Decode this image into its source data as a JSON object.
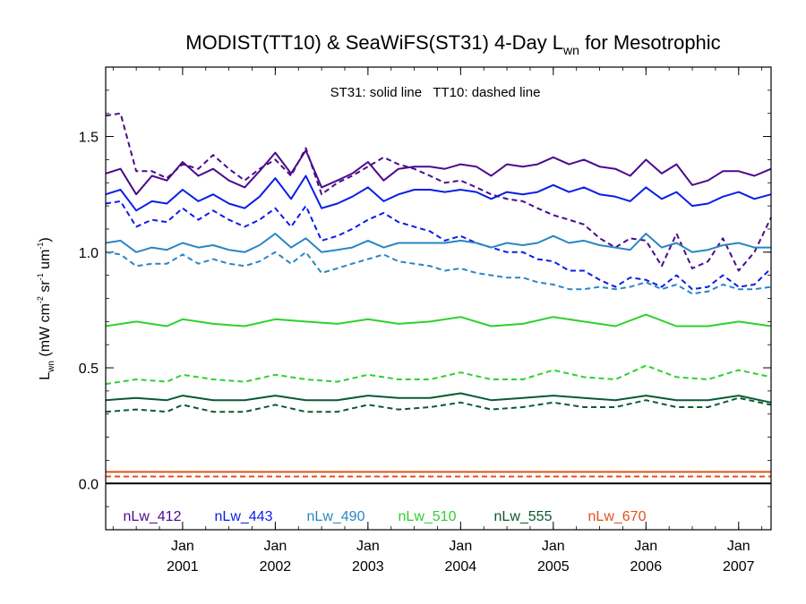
{
  "chart_data": {
    "type": "line",
    "title": {
      "main": "MODIST(TT10) & SeaWiFS(ST31) 4-Day L",
      "sub": "wn",
      "rest": " for Mesotrophic"
    },
    "annotation": "ST31: solid line   TT10: dashed line",
    "ylabel": {
      "base": "L",
      "base_sub": "wn",
      "paren_open": " (mW cm",
      "exp1": "-2",
      "sr": " sr",
      "exp2": "-1",
      "um": " um",
      "exp3": "-1",
      "paren_close": ")"
    },
    "xlim": [
      2000.17,
      2007.35
    ],
    "ylim": [
      -0.2,
      1.8
    ],
    "yticks": [
      {
        "value": 0.0,
        "label": "0.0"
      },
      {
        "value": 0.5,
        "label": "0.5"
      },
      {
        "value": 1.0,
        "label": "1.0"
      },
      {
        "value": 1.5,
        "label": "1.5"
      }
    ],
    "xticks": [
      {
        "value": 2001.0,
        "month": "Jan",
        "year": "2001"
      },
      {
        "value": 2002.0,
        "month": "Jan",
        "year": "2002"
      },
      {
        "value": 2003.0,
        "month": "Jan",
        "year": "2003"
      },
      {
        "value": 2004.0,
        "month": "Jan",
        "year": "2004"
      },
      {
        "value": 2005.0,
        "month": "Jan",
        "year": "2005"
      },
      {
        "value": 2006.0,
        "month": "Jan",
        "year": "2006"
      },
      {
        "value": 2007.0,
        "month": "Jan",
        "year": "2007"
      }
    ],
    "zero_line": 0.0,
    "legend": [
      {
        "label": "nLw_412",
        "color": "#4b0a8c"
      },
      {
        "label": "nLw_443",
        "color": "#0a1ee6"
      },
      {
        "label": "nLw_490",
        "color": "#2a86c4"
      },
      {
        "label": "nLw_510",
        "color": "#2ed12e"
      },
      {
        "label": "nLw_555",
        "color": "#0a5a32"
      },
      {
        "label": "nLw_670",
        "color": "#e0501e"
      }
    ],
    "series": [
      {
        "name": "nLw_412",
        "sensor": "ST31",
        "style": "solid",
        "color": "#4b0a8c",
        "x": [
          2000.17,
          2000.33,
          2000.5,
          2000.67,
          2000.83,
          2001.0,
          2001.17,
          2001.33,
          2001.5,
          2001.67,
          2001.83,
          2002.0,
          2002.17,
          2002.33,
          2002.5,
          2002.67,
          2002.83,
          2003.0,
          2003.17,
          2003.33,
          2003.5,
          2003.67,
          2003.83,
          2004.0,
          2004.17,
          2004.33,
          2004.5,
          2004.67,
          2004.83,
          2005.0,
          2005.17,
          2005.33,
          2005.5,
          2005.67,
          2005.83,
          2006.0,
          2006.17,
          2006.33,
          2006.5,
          2006.67,
          2006.83,
          2007.0,
          2007.17,
          2007.35
        ],
        "y": [
          1.34,
          1.36,
          1.25,
          1.33,
          1.31,
          1.39,
          1.33,
          1.36,
          1.31,
          1.28,
          1.35,
          1.43,
          1.34,
          1.44,
          1.28,
          1.31,
          1.34,
          1.39,
          1.31,
          1.36,
          1.37,
          1.37,
          1.36,
          1.38,
          1.37,
          1.33,
          1.38,
          1.37,
          1.38,
          1.41,
          1.38,
          1.4,
          1.37,
          1.36,
          1.33,
          1.4,
          1.34,
          1.38,
          1.29,
          1.31,
          1.35,
          1.35,
          1.33,
          1.36
        ]
      },
      {
        "name": "nLw_412",
        "sensor": "TT10",
        "style": "dashed",
        "color": "#4b0a8c",
        "x": [
          2000.17,
          2000.33,
          2000.5,
          2000.67,
          2000.83,
          2001.0,
          2001.17,
          2001.33,
          2001.5,
          2001.67,
          2001.83,
          2002.0,
          2002.17,
          2002.33,
          2002.5,
          2002.67,
          2002.83,
          2003.0,
          2003.17,
          2003.33,
          2003.5,
          2003.67,
          2003.83,
          2004.0,
          2004.17,
          2004.33,
          2004.5,
          2004.67,
          2004.83,
          2005.0,
          2005.17,
          2005.33,
          2005.5,
          2005.67,
          2005.83,
          2006.0,
          2006.17,
          2006.33,
          2006.5,
          2006.67,
          2006.83,
          2007.0,
          2007.17,
          2007.35
        ],
        "y": [
          1.59,
          1.6,
          1.35,
          1.35,
          1.32,
          1.38,
          1.36,
          1.42,
          1.36,
          1.31,
          1.36,
          1.4,
          1.33,
          1.45,
          1.25,
          1.3,
          1.33,
          1.37,
          1.41,
          1.38,
          1.36,
          1.33,
          1.3,
          1.31,
          1.28,
          1.25,
          1.23,
          1.22,
          1.19,
          1.16,
          1.14,
          1.12,
          1.06,
          1.02,
          1.06,
          1.05,
          0.94,
          1.08,
          0.93,
          0.96,
          1.06,
          0.92,
          1.0,
          1.15
        ]
      },
      {
        "name": "nLw_443",
        "sensor": "ST31",
        "style": "solid",
        "color": "#0a1ee6",
        "x": [
          2000.17,
          2000.33,
          2000.5,
          2000.67,
          2000.83,
          2001.0,
          2001.17,
          2001.33,
          2001.5,
          2001.67,
          2001.83,
          2002.0,
          2002.17,
          2002.33,
          2002.5,
          2002.67,
          2002.83,
          2003.0,
          2003.17,
          2003.33,
          2003.5,
          2003.67,
          2003.83,
          2004.0,
          2004.17,
          2004.33,
          2004.5,
          2004.67,
          2004.83,
          2005.0,
          2005.17,
          2005.33,
          2005.5,
          2005.67,
          2005.83,
          2006.0,
          2006.17,
          2006.33,
          2006.5,
          2006.67,
          2006.83,
          2007.0,
          2007.17,
          2007.35
        ],
        "y": [
          1.25,
          1.27,
          1.18,
          1.22,
          1.21,
          1.27,
          1.22,
          1.25,
          1.21,
          1.19,
          1.24,
          1.32,
          1.23,
          1.33,
          1.19,
          1.21,
          1.24,
          1.28,
          1.22,
          1.25,
          1.27,
          1.27,
          1.26,
          1.27,
          1.26,
          1.23,
          1.26,
          1.25,
          1.26,
          1.29,
          1.26,
          1.28,
          1.25,
          1.24,
          1.22,
          1.28,
          1.23,
          1.26,
          1.2,
          1.21,
          1.24,
          1.26,
          1.23,
          1.25
        ]
      },
      {
        "name": "nLw_443",
        "sensor": "TT10",
        "style": "dashed",
        "color": "#0a1ee6",
        "x": [
          2000.17,
          2000.33,
          2000.5,
          2000.67,
          2000.83,
          2001.0,
          2001.17,
          2001.33,
          2001.5,
          2001.67,
          2001.83,
          2002.0,
          2002.17,
          2002.33,
          2002.5,
          2002.67,
          2002.83,
          2003.0,
          2003.17,
          2003.33,
          2003.5,
          2003.67,
          2003.83,
          2004.0,
          2004.17,
          2004.33,
          2004.5,
          2004.67,
          2004.83,
          2005.0,
          2005.17,
          2005.33,
          2005.5,
          2005.67,
          2005.83,
          2006.0,
          2006.17,
          2006.33,
          2006.5,
          2006.67,
          2006.83,
          2007.0,
          2007.17,
          2007.35
        ],
        "y": [
          1.21,
          1.22,
          1.11,
          1.14,
          1.13,
          1.19,
          1.14,
          1.18,
          1.14,
          1.11,
          1.14,
          1.19,
          1.11,
          1.2,
          1.05,
          1.07,
          1.1,
          1.14,
          1.17,
          1.13,
          1.11,
          1.09,
          1.05,
          1.07,
          1.04,
          1.02,
          1.0,
          1.0,
          0.97,
          0.96,
          0.92,
          0.92,
          0.88,
          0.85,
          0.89,
          0.88,
          0.85,
          0.9,
          0.84,
          0.85,
          0.9,
          0.85,
          0.86,
          0.93
        ]
      },
      {
        "name": "nLw_490",
        "sensor": "ST31",
        "style": "solid",
        "color": "#2a86c4",
        "x": [
          2000.17,
          2000.33,
          2000.5,
          2000.67,
          2000.83,
          2001.0,
          2001.17,
          2001.33,
          2001.5,
          2001.67,
          2001.83,
          2002.0,
          2002.17,
          2002.33,
          2002.5,
          2002.67,
          2002.83,
          2003.0,
          2003.17,
          2003.33,
          2003.5,
          2003.67,
          2003.83,
          2004.0,
          2004.17,
          2004.33,
          2004.5,
          2004.67,
          2004.83,
          2005.0,
          2005.17,
          2005.33,
          2005.5,
          2005.67,
          2005.83,
          2006.0,
          2006.17,
          2006.33,
          2006.5,
          2006.67,
          2006.83,
          2007.0,
          2007.17,
          2007.35
        ],
        "y": [
          1.04,
          1.05,
          1.0,
          1.02,
          1.01,
          1.04,
          1.02,
          1.03,
          1.01,
          1.0,
          1.03,
          1.08,
          1.02,
          1.06,
          1.0,
          1.01,
          1.02,
          1.05,
          1.02,
          1.04,
          1.04,
          1.04,
          1.04,
          1.05,
          1.04,
          1.02,
          1.04,
          1.03,
          1.04,
          1.07,
          1.04,
          1.05,
          1.03,
          1.02,
          1.01,
          1.08,
          1.02,
          1.04,
          1.0,
          1.01,
          1.03,
          1.04,
          1.02,
          1.02
        ]
      },
      {
        "name": "nLw_490",
        "sensor": "TT10",
        "style": "dashed",
        "color": "#2a86c4",
        "x": [
          2000.17,
          2000.33,
          2000.5,
          2000.67,
          2000.83,
          2001.0,
          2001.17,
          2001.33,
          2001.5,
          2001.67,
          2001.83,
          2002.0,
          2002.17,
          2002.33,
          2002.5,
          2002.67,
          2002.83,
          2003.0,
          2003.17,
          2003.33,
          2003.5,
          2003.67,
          2003.83,
          2004.0,
          2004.17,
          2004.33,
          2004.5,
          2004.67,
          2004.83,
          2005.0,
          2005.17,
          2005.33,
          2005.5,
          2005.67,
          2005.83,
          2006.0,
          2006.17,
          2006.33,
          2006.5,
          2006.67,
          2006.83,
          2007.0,
          2007.17,
          2007.35
        ],
        "y": [
          1.0,
          0.99,
          0.94,
          0.95,
          0.95,
          0.99,
          0.95,
          0.97,
          0.95,
          0.94,
          0.96,
          1.0,
          0.95,
          1.0,
          0.91,
          0.93,
          0.95,
          0.97,
          0.99,
          0.96,
          0.95,
          0.94,
          0.92,
          0.93,
          0.91,
          0.9,
          0.89,
          0.89,
          0.87,
          0.86,
          0.84,
          0.84,
          0.85,
          0.84,
          0.85,
          0.87,
          0.84,
          0.86,
          0.82,
          0.83,
          0.86,
          0.84,
          0.84,
          0.85
        ]
      },
      {
        "name": "nLw_510",
        "sensor": "ST31",
        "style": "solid",
        "color": "#2ed12e",
        "x": [
          2000.17,
          2000.5,
          2000.83,
          2001.0,
          2001.33,
          2001.67,
          2002.0,
          2002.33,
          2002.67,
          2003.0,
          2003.33,
          2003.67,
          2004.0,
          2004.33,
          2004.67,
          2005.0,
          2005.33,
          2005.67,
          2006.0,
          2006.33,
          2006.67,
          2007.0,
          2007.35
        ],
        "y": [
          0.68,
          0.7,
          0.68,
          0.71,
          0.69,
          0.68,
          0.71,
          0.7,
          0.69,
          0.71,
          0.69,
          0.7,
          0.72,
          0.68,
          0.69,
          0.72,
          0.7,
          0.68,
          0.73,
          0.68,
          0.68,
          0.7,
          0.68
        ]
      },
      {
        "name": "nLw_510",
        "sensor": "TT10",
        "style": "dashed",
        "color": "#2ed12e",
        "x": [
          2000.17,
          2000.5,
          2000.83,
          2001.0,
          2001.33,
          2001.67,
          2002.0,
          2002.33,
          2002.67,
          2003.0,
          2003.33,
          2003.67,
          2004.0,
          2004.33,
          2004.67,
          2005.0,
          2005.33,
          2005.67,
          2006.0,
          2006.33,
          2006.67,
          2007.0,
          2007.35
        ],
        "y": [
          0.43,
          0.45,
          0.44,
          0.47,
          0.45,
          0.44,
          0.47,
          0.45,
          0.44,
          0.47,
          0.45,
          0.45,
          0.48,
          0.45,
          0.45,
          0.49,
          0.46,
          0.45,
          0.51,
          0.46,
          0.45,
          0.49,
          0.46
        ]
      },
      {
        "name": "nLw_555",
        "sensor": "ST31",
        "style": "solid",
        "color": "#0a5a32",
        "x": [
          2000.17,
          2000.5,
          2000.83,
          2001.0,
          2001.33,
          2001.67,
          2002.0,
          2002.33,
          2002.67,
          2003.0,
          2003.33,
          2003.67,
          2004.0,
          2004.33,
          2004.67,
          2005.0,
          2005.33,
          2005.67,
          2006.0,
          2006.33,
          2006.67,
          2007.0,
          2007.35
        ],
        "y": [
          0.36,
          0.37,
          0.36,
          0.38,
          0.36,
          0.36,
          0.38,
          0.36,
          0.36,
          0.38,
          0.37,
          0.37,
          0.39,
          0.36,
          0.37,
          0.38,
          0.37,
          0.36,
          0.38,
          0.36,
          0.36,
          0.38,
          0.35
        ]
      },
      {
        "name": "nLw_555",
        "sensor": "TT10",
        "style": "dashed",
        "color": "#0a5a32",
        "x": [
          2000.17,
          2000.5,
          2000.83,
          2001.0,
          2001.33,
          2001.67,
          2002.0,
          2002.33,
          2002.67,
          2003.0,
          2003.33,
          2003.67,
          2004.0,
          2004.33,
          2004.67,
          2005.0,
          2005.33,
          2005.67,
          2006.0,
          2006.33,
          2006.67,
          2007.0,
          2007.35
        ],
        "y": [
          0.31,
          0.32,
          0.31,
          0.34,
          0.31,
          0.31,
          0.34,
          0.31,
          0.31,
          0.34,
          0.32,
          0.33,
          0.35,
          0.32,
          0.33,
          0.35,
          0.33,
          0.33,
          0.36,
          0.33,
          0.33,
          0.37,
          0.34
        ]
      },
      {
        "name": "nLw_670",
        "sensor": "ST31",
        "style": "solid",
        "color": "#e0501e",
        "x": [
          2000.17,
          2001.0,
          2002.0,
          2003.0,
          2004.0,
          2005.0,
          2006.0,
          2007.0,
          2007.35
        ],
        "y": [
          0.05,
          0.05,
          0.05,
          0.05,
          0.05,
          0.05,
          0.05,
          0.05,
          0.05
        ]
      },
      {
        "name": "nLw_670",
        "sensor": "TT10",
        "style": "dashed",
        "color": "#e0501e",
        "x": [
          2000.17,
          2001.0,
          2002.0,
          2003.0,
          2004.0,
          2005.0,
          2006.0,
          2007.0,
          2007.35
        ],
        "y": [
          0.03,
          0.03,
          0.03,
          0.03,
          0.03,
          0.03,
          0.03,
          0.03,
          0.03
        ]
      }
    ]
  }
}
